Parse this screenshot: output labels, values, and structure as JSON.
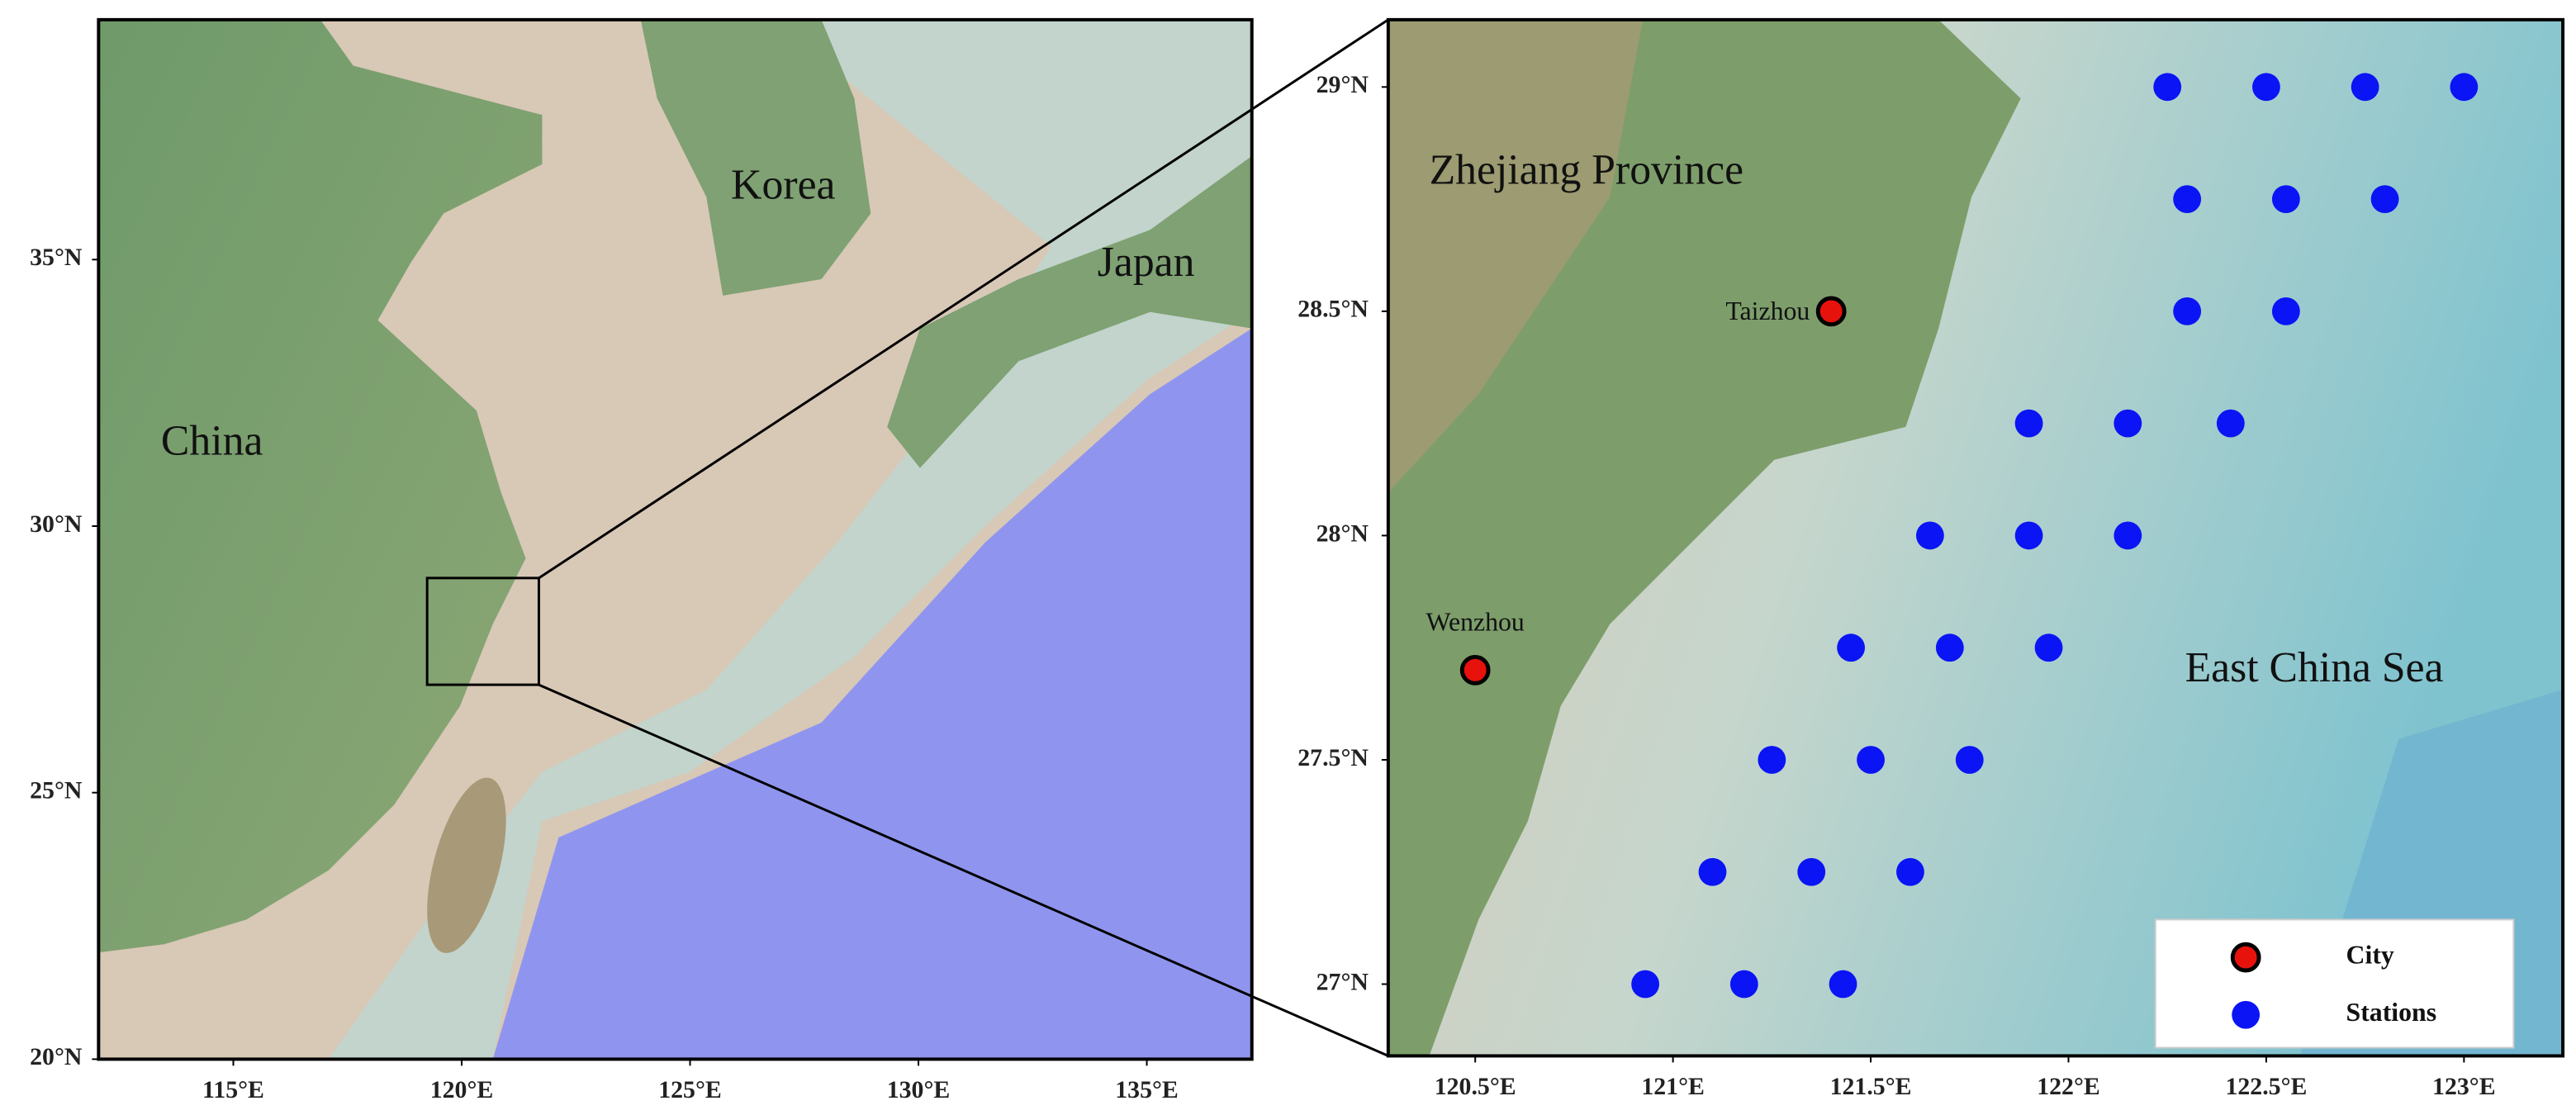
{
  "maps": [
    {
      "xlim": [
        112.05,
        137.3
      ],
      "ylim": [
        20,
        39.5
      ],
      "xticks": [
        {
          "value": 115,
          "label": "115°E"
        },
        {
          "value": 120,
          "label": "120°E"
        },
        {
          "value": 125,
          "label": "125°E"
        },
        {
          "value": 130,
          "label": "130°E"
        },
        {
          "value": 135,
          "label": "135°E"
        }
      ],
      "yticks": [
        {
          "value": 20,
          "label": "20°N"
        },
        {
          "value": 25,
          "label": "25°N"
        },
        {
          "value": 30,
          "label": "30°N"
        },
        {
          "value": 35,
          "label": "35°N"
        }
      ],
      "labels": [
        "China",
        "Korea",
        "Japan"
      ]
    },
    {
      "xlim": [
        120.28,
        123.25
      ],
      "ylim": [
        26.84,
        29.15
      ],
      "xticks": [
        {
          "value": 120.5,
          "label": "120.5°E"
        },
        {
          "value": 121,
          "label": "121°E"
        },
        {
          "value": 121.5,
          "label": "121.5°E"
        },
        {
          "value": 122,
          "label": "122°E"
        },
        {
          "value": 122.5,
          "label": "122.5°E"
        },
        {
          "value": 123,
          "label": "123°E"
        }
      ],
      "yticks": [
        {
          "value": 27,
          "label": "27°N"
        },
        {
          "value": 27.5,
          "label": "27.5°N"
        },
        {
          "value": 28,
          "label": "28°N"
        },
        {
          "value": 28.5,
          "label": "28.5°N"
        },
        {
          "value": 29,
          "label": "29°N"
        }
      ],
      "labels": [
        "Zhejiang Province",
        "East China Sea"
      ],
      "cities": {
        "name": "City",
        "color": "#e8120c",
        "items": [
          {
            "label": "Taizhou",
            "lon": 121.4,
            "lat": 28.5
          },
          {
            "label": "Wenzhou",
            "lon": 120.5,
            "lat": 27.7
          }
        ]
      },
      "stations": {
        "name": "Stations",
        "color": "#0a14f5",
        "lon": [
          122.25,
          122.5,
          122.75,
          123.0,
          122.3,
          122.55,
          122.8,
          122.3,
          122.55,
          121.9,
          122.15,
          122.41,
          121.65,
          121.9,
          122.15,
          121.45,
          121.7,
          121.95,
          121.25,
          121.5,
          121.75,
          121.1,
          121.35,
          121.6,
          120.93,
          121.18,
          121.43
        ],
        "lat": [
          29.0,
          29.0,
          29.0,
          29.0,
          28.75,
          28.75,
          28.75,
          28.5,
          28.5,
          28.25,
          28.25,
          28.25,
          28.0,
          28.0,
          28.0,
          27.75,
          27.75,
          27.75,
          27.5,
          27.5,
          27.5,
          27.25,
          27.25,
          27.25,
          27.0,
          27.0,
          27.0
        ]
      }
    }
  ]
}
